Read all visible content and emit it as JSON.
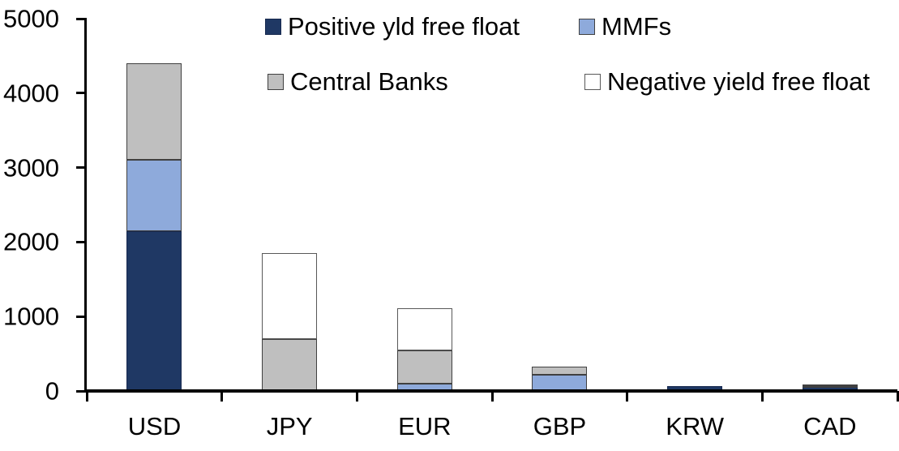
{
  "chart_data": {
    "type": "bar",
    "subtype": "stacked",
    "title": "",
    "xlabel": "",
    "ylabel": "",
    "categories": [
      "USD",
      "JPY",
      "EUR",
      "GBP",
      "KRW",
      "CAD"
    ],
    "series": [
      {
        "name": "Positive yld free float",
        "fill": "#1F3864",
        "border": "#17294F",
        "values": [
          2150,
          0,
          0,
          0,
          60,
          50
        ]
      },
      {
        "name": "MMFs",
        "fill": "#8EAADB",
        "border": "#404040",
        "values": [
          950,
          0,
          100,
          220,
          0,
          10
        ]
      },
      {
        "name": "Central Banks",
        "fill": "#BFBFBF",
        "border": "#404040",
        "values": [
          1300,
          700,
          440,
          110,
          0,
          30
        ]
      },
      {
        "name": "Negative yield free float",
        "fill": "#FFFFFF",
        "border": "#595959",
        "values": [
          0,
          1150,
          570,
          0,
          0,
          0
        ]
      }
    ],
    "totals": [
      4400,
      1850,
      1110,
      330,
      60,
      90
    ],
    "ylim": [
      0,
      5000
    ],
    "ytick_step": 1000,
    "yticks": [
      "0",
      "1000",
      "2000",
      "3000",
      "4000",
      "5000"
    ],
    "grid": false,
    "legend_position": "top",
    "legend_rows": [
      [
        "Positive yld free float",
        "MMFs"
      ],
      [
        "Central Banks",
        "Negative yield free float"
      ]
    ],
    "axis_color": "#000000",
    "background": "#FFFFFF"
  }
}
